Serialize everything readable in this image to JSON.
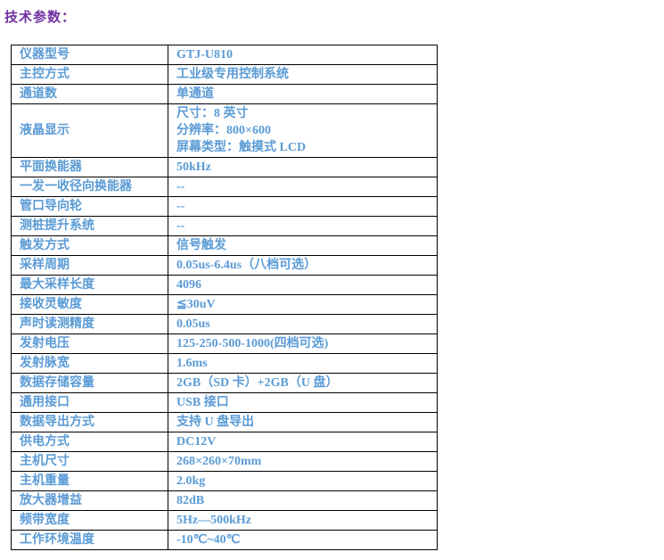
{
  "page": {
    "title": "技术参数："
  },
  "colors": {
    "title_text": "#7030A0",
    "table_text": "#5B9BD5",
    "table_border": "#000000",
    "background": "#ffffff"
  },
  "table": {
    "rows": [
      {
        "param": "仪器型号",
        "value": "GTJ-U810"
      },
      {
        "param": "主控方式",
        "value": "工业级专用控制系统"
      },
      {
        "param": "通道数",
        "value": "单通道"
      },
      {
        "param": "液晶显示",
        "value": "尺寸：8 英寸\n分辨率：800×600\n屏幕类型：触摸式 LCD"
      },
      {
        "param": "平面换能器",
        "value": "50kHz"
      },
      {
        "param": "一发一收径向换能器",
        "value": "--"
      },
      {
        "param": "管口导向轮",
        "value": "--"
      },
      {
        "param": "测桩提升系统",
        "value": "--"
      },
      {
        "param": "触发方式",
        "value": "信号触发"
      },
      {
        "param": "采样周期",
        "value": "0.05us-6.4us（八档可选）"
      },
      {
        "param": "最大采样长度",
        "value": "4096"
      },
      {
        "param": "接收灵敏度",
        "value": "≦30uV"
      },
      {
        "param": "声时读测精度",
        "value": "0.05us"
      },
      {
        "param": "发射电压",
        "value": "125-250-500-1000(四档可选)"
      },
      {
        "param": "发射脉宽",
        "value": "1.6ms"
      },
      {
        "param": "数据存储容量",
        "value": "2GB（SD 卡）+2GB（U 盘）"
      },
      {
        "param": "通用接口",
        "value": "USB 接口"
      },
      {
        "param": "数据导出方式",
        "value": "支持 U 盘导出"
      },
      {
        "param": "供电方式",
        "value": "DC12V"
      },
      {
        "param": "主机尺寸",
        "value": "268×260×70mm"
      },
      {
        "param": "主机重量",
        "value": "2.0kg"
      },
      {
        "param": "放大器增益",
        "value": "82dB"
      },
      {
        "param": "频带宽度",
        "value": "5Hz—500kHz"
      },
      {
        "param": "工作环境温度",
        "value": "-10℃~40℃"
      }
    ]
  }
}
